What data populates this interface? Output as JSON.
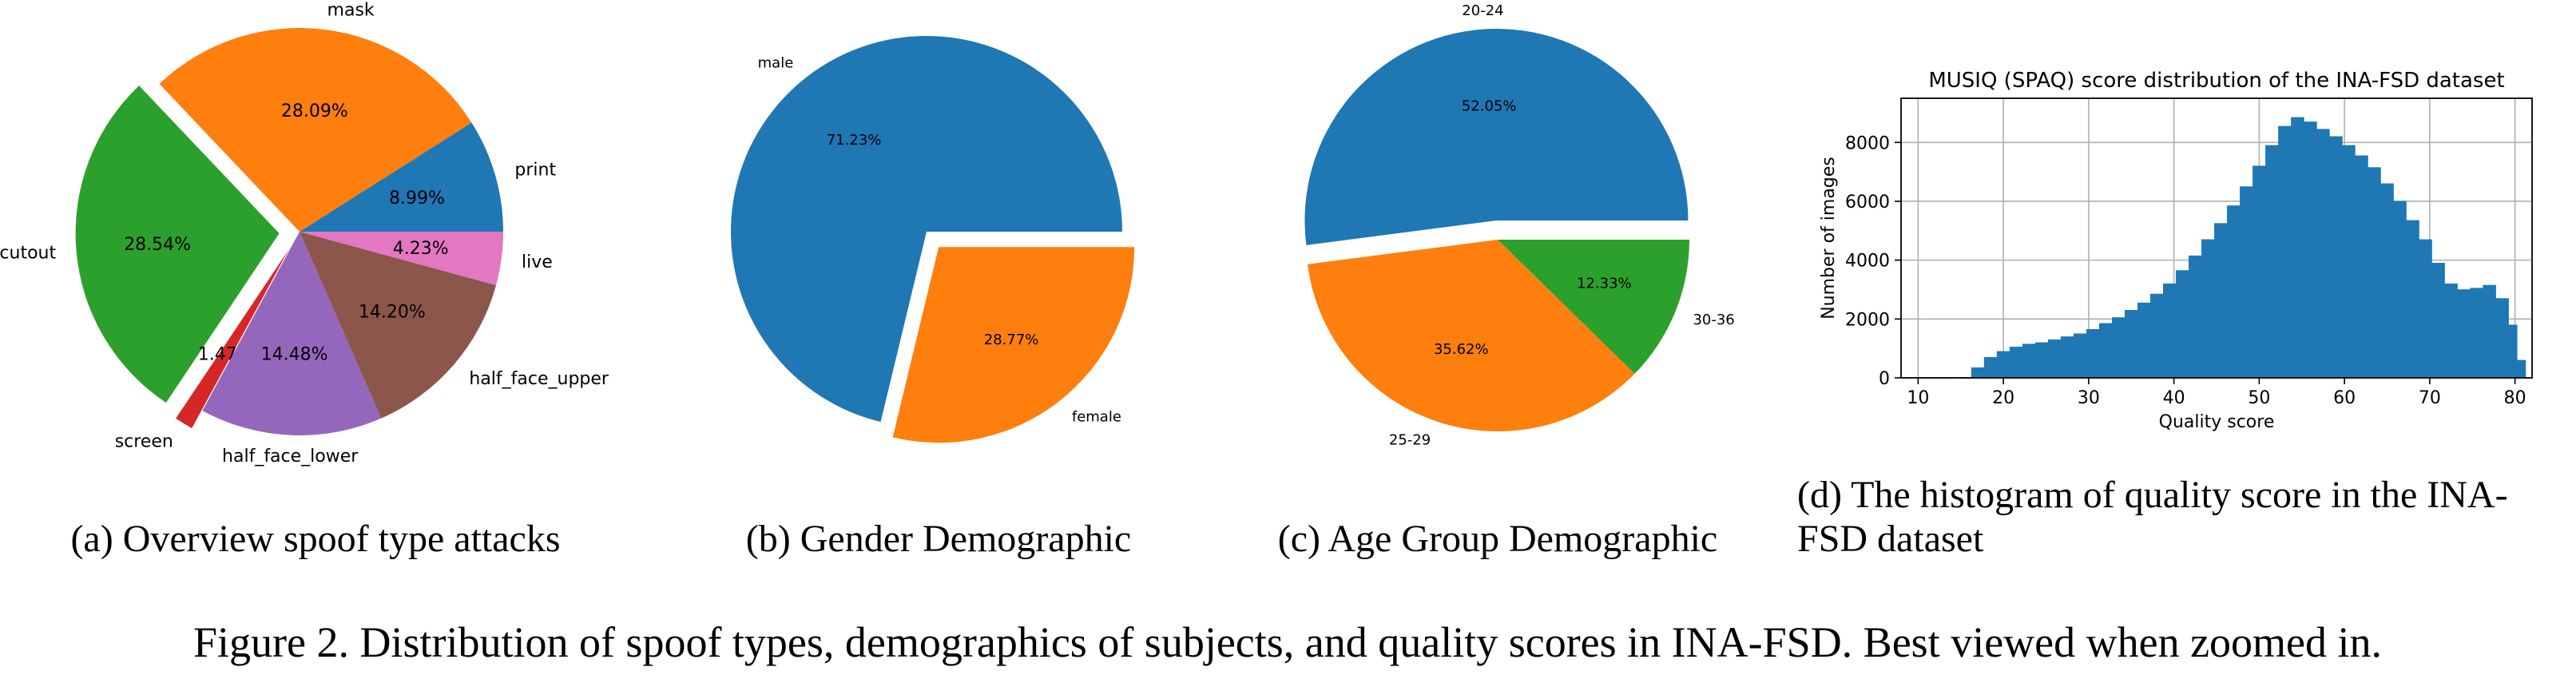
{
  "chart_data": [
    {
      "type": "pie",
      "slices": [
        {
          "label": "print",
          "value": 8.99,
          "pct": "8.99%",
          "color": "#1f77b4",
          "exploded": false
        },
        {
          "label": "mask",
          "value": 28.09,
          "pct": "28.09%",
          "color": "#ff7f0e",
          "exploded": false
        },
        {
          "label": "cutout",
          "value": 28.54,
          "pct": "28.54%",
          "color": "#2ca02c",
          "exploded": true
        },
        {
          "label": "screen",
          "value": 1.47,
          "pct": "1.47%",
          "color": "#d62728",
          "exploded": true
        },
        {
          "label": "half_face_lower",
          "value": 14.48,
          "pct": "14.48%",
          "color": "#9467bd",
          "exploded": false
        },
        {
          "label": "half_face_upper",
          "value": 14.2,
          "pct": "14.20%",
          "color": "#8c564b",
          "exploded": false
        },
        {
          "label": "live",
          "value": 4.23,
          "pct": "4.23%",
          "color": "#e377c2",
          "exploded": false
        }
      ],
      "caption": "(a) Overview spoof type attacks"
    },
    {
      "type": "pie",
      "slices": [
        {
          "label": "male",
          "value": 71.23,
          "pct": "71.23%",
          "color": "#1f77b4",
          "exploded": false
        },
        {
          "label": "female",
          "value": 28.77,
          "pct": "28.77%",
          "color": "#ff7f0e",
          "exploded": true
        }
      ],
      "caption": "(b) Gender Demographic"
    },
    {
      "type": "pie",
      "slices": [
        {
          "label": "20-24",
          "value": 52.05,
          "pct": "52.05%",
          "color": "#1f77b4",
          "exploded": true
        },
        {
          "label": "25-29",
          "value": 35.62,
          "pct": "35.62%",
          "color": "#ff7f0e",
          "exploded": false
        },
        {
          "label": "30-36",
          "value": 12.33,
          "pct": "12.33%",
          "color": "#2ca02c",
          "exploded": false
        }
      ],
      "caption": "(c) Age Group Demographic"
    },
    {
      "type": "bar",
      "title": "MUSIQ (SPAQ) score distribution of the INA-FSD dataset",
      "xlabel": "Quality score",
      "ylabel": "Number of images",
      "xlim": [
        8,
        82
      ],
      "ylim": [
        0,
        9500
      ],
      "xticks": [
        10,
        20,
        30,
        40,
        50,
        60,
        70,
        80
      ],
      "yticks": [
        0,
        2000,
        4000,
        6000,
        8000
      ],
      "grid": true,
      "bar_color": "#1f77b4",
      "bins_x": [
        [
          14.0,
          0.5
        ],
        [
          15.5,
          20
        ],
        [
          17.0,
          350
        ],
        [
          18.5,
          700
        ],
        [
          20.0,
          900
        ],
        [
          21.5,
          1050
        ],
        [
          23.0,
          1150
        ],
        [
          24.5,
          1200
        ],
        [
          26.0,
          1300
        ],
        [
          27.5,
          1400
        ],
        [
          29.0,
          1500
        ],
        [
          30.5,
          1650
        ],
        [
          32.0,
          1850
        ],
        [
          33.5,
          2050
        ],
        [
          35.0,
          2300
        ],
        [
          36.5,
          2550
        ],
        [
          38.0,
          2850
        ],
        [
          39.5,
          3200
        ],
        [
          41.0,
          3650
        ],
        [
          42.5,
          4150
        ],
        [
          44.0,
          4700
        ],
        [
          45.5,
          5250
        ],
        [
          47.0,
          5850
        ],
        [
          48.5,
          6500
        ],
        [
          50.0,
          7200
        ],
        [
          51.5,
          7900
        ],
        [
          53.0,
          8550
        ],
        [
          54.5,
          8850
        ],
        [
          56.0,
          8700
        ],
        [
          57.5,
          8450
        ],
        [
          59.0,
          8200
        ],
        [
          60.5,
          7900
        ],
        [
          62.0,
          7550
        ],
        [
          63.5,
          7150
        ],
        [
          65.0,
          6600
        ],
        [
          66.5,
          6000
        ],
        [
          68.0,
          5350
        ],
        [
          69.5,
          4700
        ],
        [
          71.0,
          3900
        ],
        [
          72.5,
          3200
        ],
        [
          74.0,
          3000
        ],
        [
          75.5,
          3050
        ],
        [
          77.0,
          3150
        ],
        [
          78.5,
          2700
        ],
        [
          79.5,
          1800
        ],
        [
          80.5,
          600
        ]
      ],
      "caption": "(d) The histogram of quality score in the INA-FSD dataset",
      "caption_lines": [
        "(d) The histogram of quality score in the INA-",
        "FSD dataset"
      ]
    }
  ],
  "figure_caption": "Figure 2. Distribution of spoof types, demographics of subjects, and quality scores in INA-FSD. Best viewed when zoomed in."
}
